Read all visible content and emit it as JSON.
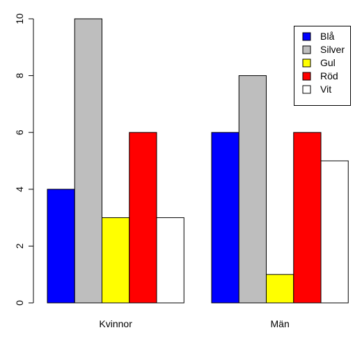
{
  "chart_data": {
    "type": "bar",
    "grouped": true,
    "categories": [
      "Kvinnor",
      "Män"
    ],
    "series": [
      {
        "name": "Blå",
        "color": "#0000ff",
        "values": [
          4,
          6
        ]
      },
      {
        "name": "Silver",
        "color": "#bebebe",
        "values": [
          10,
          8
        ]
      },
      {
        "name": "Gul",
        "color": "#ffff00",
        "values": [
          3,
          1
        ]
      },
      {
        "name": "Röd",
        "color": "#ff0000",
        "values": [
          6,
          6
        ]
      },
      {
        "name": "Vit",
        "color": "#ffffff",
        "values": [
          3,
          5
        ]
      }
    ],
    "ylim": [
      0,
      10
    ],
    "yticks": [
      "0",
      "2",
      "4",
      "6",
      "8",
      "10"
    ],
    "grid": false,
    "legend_position": "top-right"
  }
}
